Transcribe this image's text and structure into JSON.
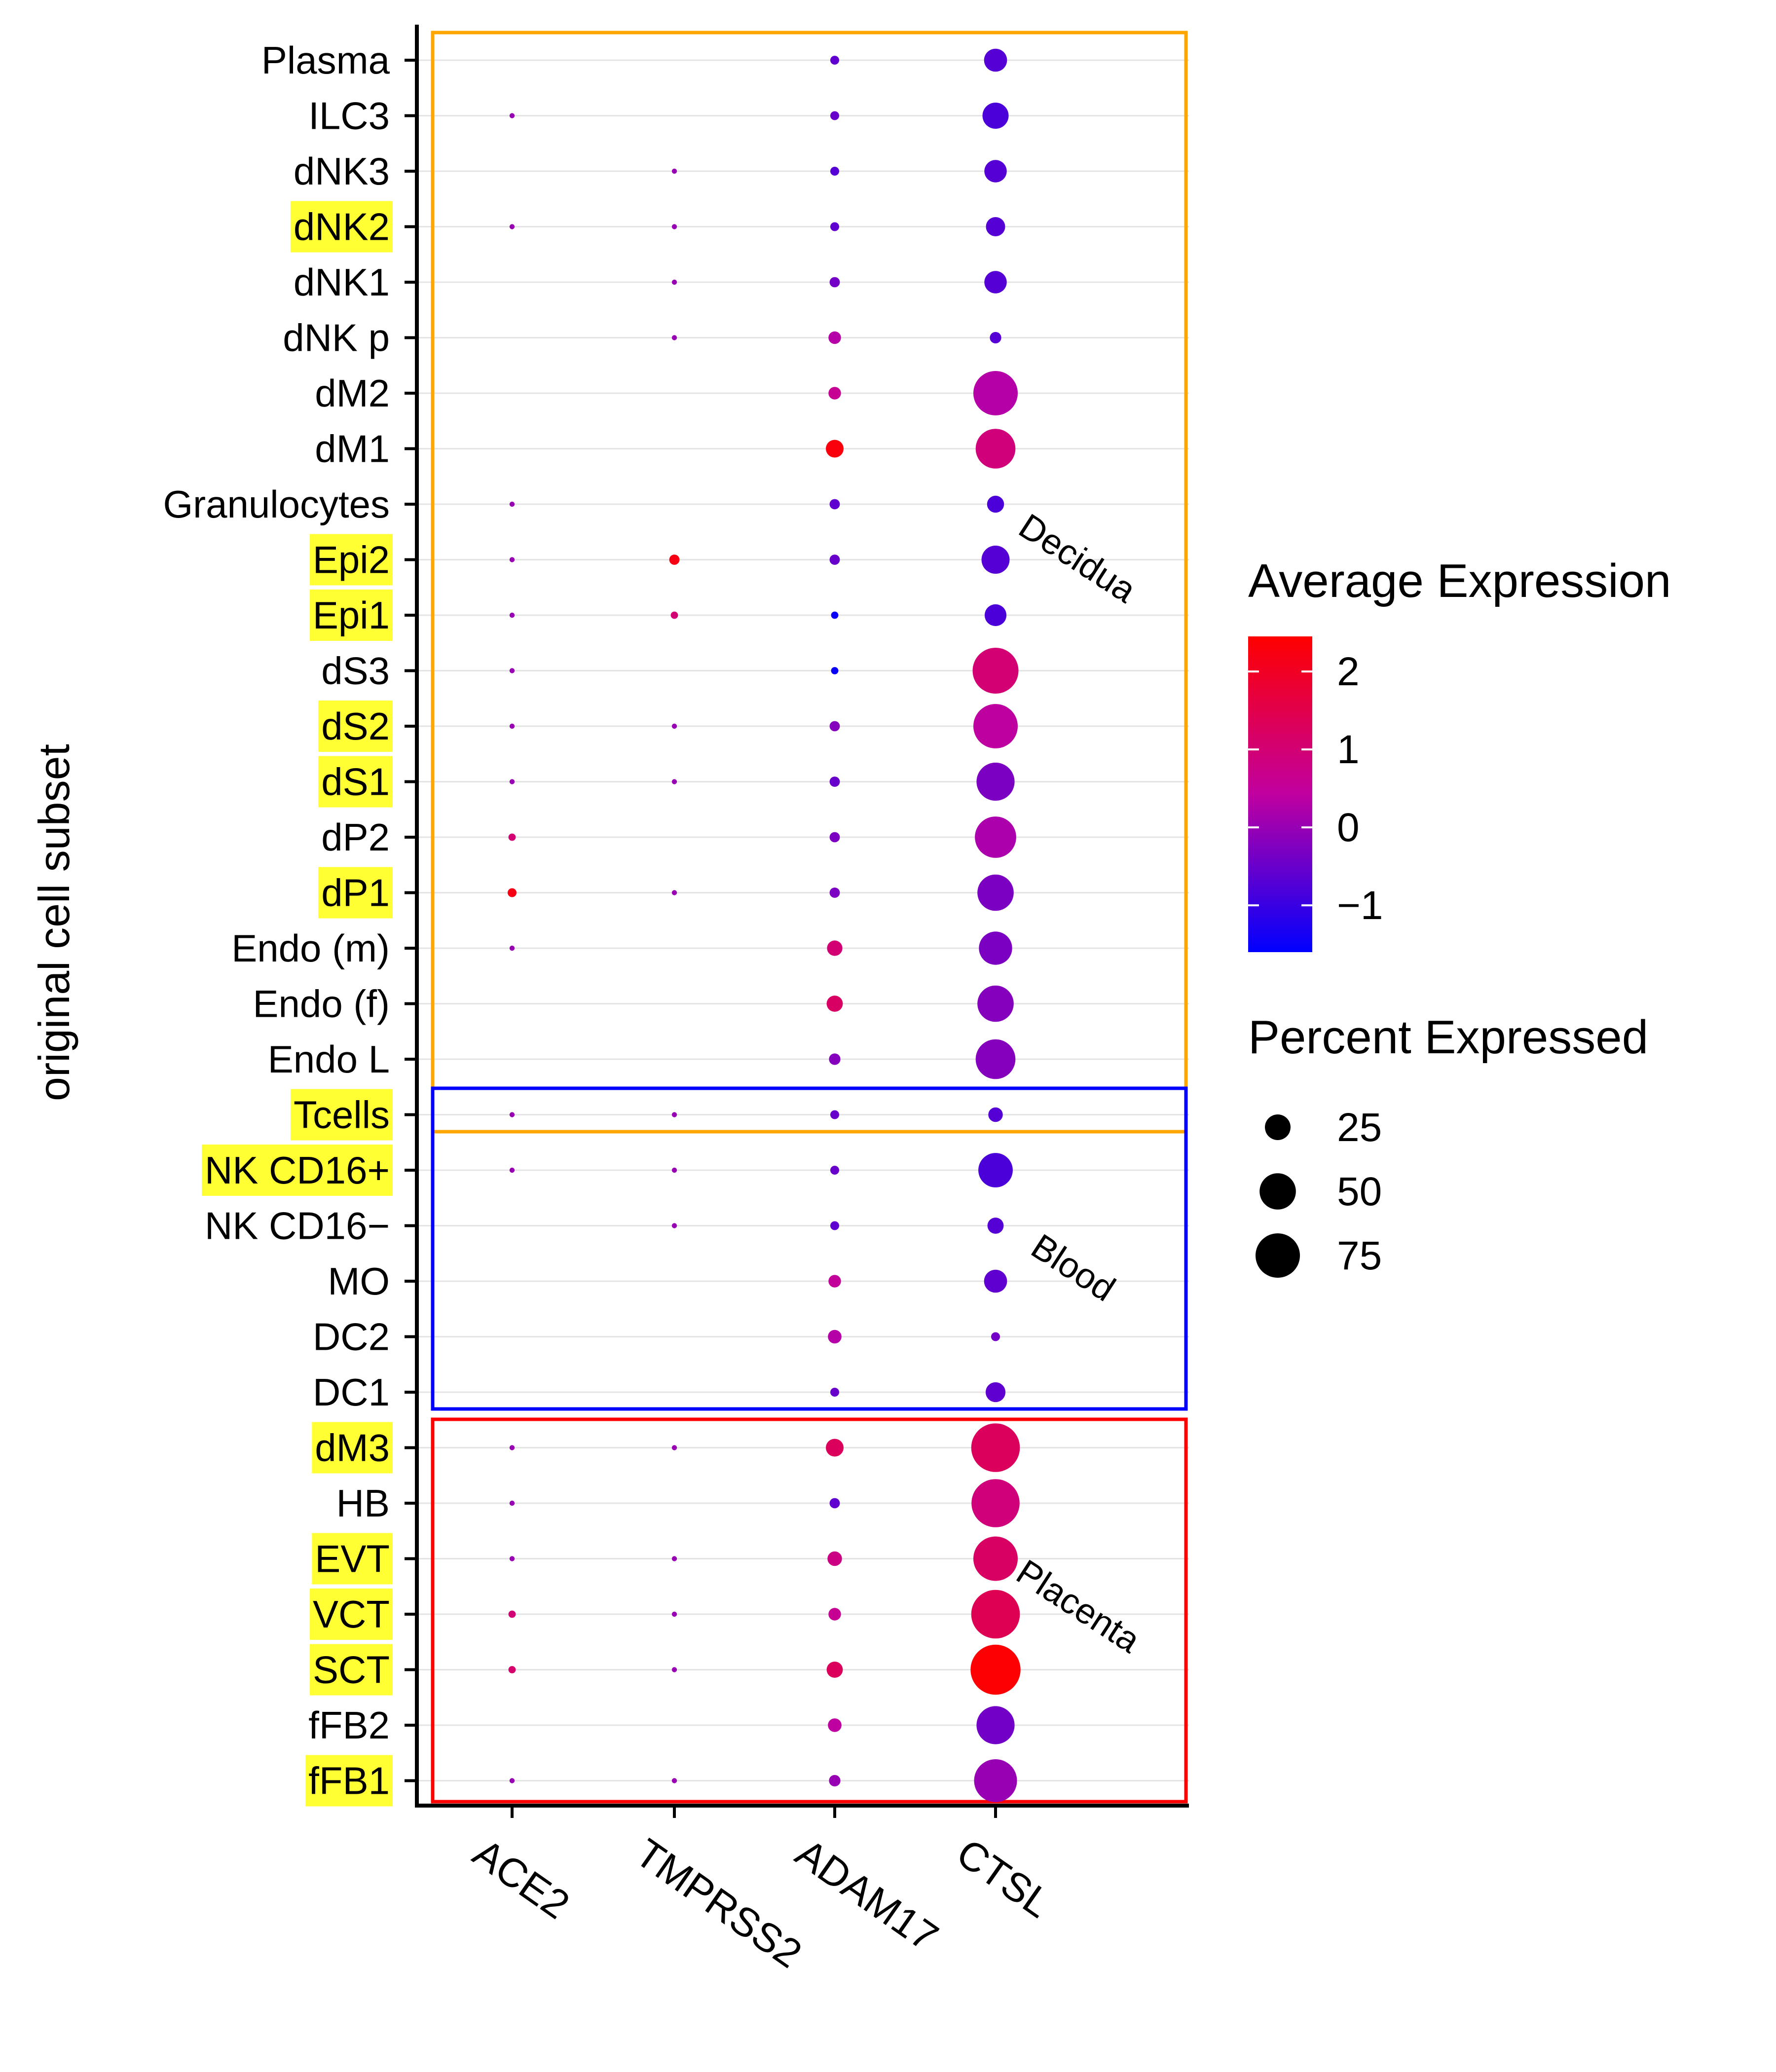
{
  "chart_data": {
    "type": "dotplot",
    "ylabel": "original cell subset",
    "xlabel": "",
    "genes": [
      "ACE2",
      "TMPRSS2",
      "ADAM17",
      "CTSL"
    ],
    "cell_subsets": [
      {
        "name": "Plasma",
        "highlight": false
      },
      {
        "name": "ILC3",
        "highlight": false
      },
      {
        "name": "dNK3",
        "highlight": false
      },
      {
        "name": "dNK2",
        "highlight": true
      },
      {
        "name": "dNK1",
        "highlight": false
      },
      {
        "name": "dNK p",
        "highlight": false
      },
      {
        "name": "dM2",
        "highlight": false
      },
      {
        "name": "dM1",
        "highlight": false
      },
      {
        "name": "Granulocytes",
        "highlight": false
      },
      {
        "name": "Epi2",
        "highlight": true
      },
      {
        "name": "Epi1",
        "highlight": true
      },
      {
        "name": "dS3",
        "highlight": false
      },
      {
        "name": "dS2",
        "highlight": true
      },
      {
        "name": "dS1",
        "highlight": true
      },
      {
        "name": "dP2",
        "highlight": false
      },
      {
        "name": "dP1",
        "highlight": true
      },
      {
        "name": "Endo (m)",
        "highlight": false
      },
      {
        "name": "Endo (f)",
        "highlight": false
      },
      {
        "name": "Endo L",
        "highlight": false
      },
      {
        "name": "Tcells",
        "highlight": true
      },
      {
        "name": "NK CD16+",
        "highlight": true
      },
      {
        "name": "NK CD16−",
        "highlight": false
      },
      {
        "name": "MO",
        "highlight": false
      },
      {
        "name": "DC2",
        "highlight": false
      },
      {
        "name": "DC1",
        "highlight": false
      },
      {
        "name": "dM3",
        "highlight": true
      },
      {
        "name": "HB",
        "highlight": false
      },
      {
        "name": "EVT",
        "highlight": true
      },
      {
        "name": "VCT",
        "highlight": true
      },
      {
        "name": "SCT",
        "highlight": true
      },
      {
        "name": "fFB2",
        "highlight": false
      },
      {
        "name": "fFB1",
        "highlight": true
      }
    ],
    "points": [
      {
        "subset": "Plasma",
        "gene": "ADAM17",
        "pct": 3,
        "avg": -0.6
      },
      {
        "subset": "Plasma",
        "gene": "CTSL",
        "pct": 20,
        "avg": -0.7
      },
      {
        "subset": "ILC3",
        "gene": "ACE2",
        "pct": 1,
        "avg": 0.0
      },
      {
        "subset": "ILC3",
        "gene": "ADAM17",
        "pct": 3,
        "avg": -0.5
      },
      {
        "subset": "ILC3",
        "gene": "CTSL",
        "pct": 26,
        "avg": -0.8
      },
      {
        "subset": "dNK3",
        "gene": "TMPRSS2",
        "pct": 1,
        "avg": 0.0
      },
      {
        "subset": "dNK3",
        "gene": "ADAM17",
        "pct": 3,
        "avg": -0.7
      },
      {
        "subset": "dNK3",
        "gene": "CTSL",
        "pct": 19,
        "avg": -0.7
      },
      {
        "subset": "dNK2",
        "gene": "ACE2",
        "pct": 1,
        "avg": 0.0
      },
      {
        "subset": "dNK2",
        "gene": "TMPRSS2",
        "pct": 1,
        "avg": 0.0
      },
      {
        "subset": "dNK2",
        "gene": "ADAM17",
        "pct": 3,
        "avg": -0.6
      },
      {
        "subset": "dNK2",
        "gene": "CTSL",
        "pct": 14,
        "avg": -0.7
      },
      {
        "subset": "dNK1",
        "gene": "TMPRSS2",
        "pct": 1,
        "avg": 0.0
      },
      {
        "subset": "dNK1",
        "gene": "ADAM17",
        "pct": 4,
        "avg": -0.4
      },
      {
        "subset": "dNK1",
        "gene": "CTSL",
        "pct": 19,
        "avg": -0.7
      },
      {
        "subset": "dNK p",
        "gene": "TMPRSS2",
        "pct": 1,
        "avg": 0.0
      },
      {
        "subset": "dNK p",
        "gene": "ADAM17",
        "pct": 6,
        "avg": 0.3
      },
      {
        "subset": "dNK p",
        "gene": "CTSL",
        "pct": 5,
        "avg": -0.7
      },
      {
        "subset": "dM2",
        "gene": "ADAM17",
        "pct": 6,
        "avg": 0.6
      },
      {
        "subset": "dM2",
        "gene": "CTSL",
        "pct": 75,
        "avg": 0.3
      },
      {
        "subset": "dM1",
        "gene": "ADAM17",
        "pct": 12,
        "avg": 2.3
      },
      {
        "subset": "dM1",
        "gene": "CTSL",
        "pct": 60,
        "avg": 0.9
      },
      {
        "subset": "Granulocytes",
        "gene": "ACE2",
        "pct": 1,
        "avg": 0.0
      },
      {
        "subset": "Granulocytes",
        "gene": "ADAM17",
        "pct": 4,
        "avg": -0.6
      },
      {
        "subset": "Granulocytes",
        "gene": "CTSL",
        "pct": 11,
        "avg": -0.8
      },
      {
        "subset": "Epi2",
        "gene": "ACE2",
        "pct": 1,
        "avg": 0.0
      },
      {
        "subset": "Epi2",
        "gene": "TMPRSS2",
        "pct": 4,
        "avg": 2.2
      },
      {
        "subset": "Epi2",
        "gene": "ADAM17",
        "pct": 4,
        "avg": -0.5
      },
      {
        "subset": "Epi2",
        "gene": "CTSL",
        "pct": 30,
        "avg": -0.7
      },
      {
        "subset": "Epi1",
        "gene": "ACE2",
        "pct": 1,
        "avg": 0.0
      },
      {
        "subset": "Epi1",
        "gene": "TMPRSS2",
        "pct": 2,
        "avg": 1.0
      },
      {
        "subset": "Epi1",
        "gene": "ADAM17",
        "pct": 2,
        "avg": -1.5
      },
      {
        "subset": "Epi1",
        "gene": "CTSL",
        "pct": 18,
        "avg": -0.8
      },
      {
        "subset": "dS3",
        "gene": "ACE2",
        "pct": 1,
        "avg": 0.0
      },
      {
        "subset": "dS3",
        "gene": "ADAM17",
        "pct": 2,
        "avg": -1.5
      },
      {
        "subset": "dS3",
        "gene": "CTSL",
        "pct": 80,
        "avg": 1.0
      },
      {
        "subset": "dS2",
        "gene": "ACE2",
        "pct": 1,
        "avg": 0.0
      },
      {
        "subset": "dS2",
        "gene": "TMPRSS2",
        "pct": 1,
        "avg": 0.0
      },
      {
        "subset": "dS2",
        "gene": "ADAM17",
        "pct": 4,
        "avg": -0.2
      },
      {
        "subset": "dS2",
        "gene": "CTSL",
        "pct": 75,
        "avg": 0.4
      },
      {
        "subset": "dS1",
        "gene": "ACE2",
        "pct": 1,
        "avg": 0.0
      },
      {
        "subset": "dS1",
        "gene": "TMPRSS2",
        "pct": 1,
        "avg": 0.0
      },
      {
        "subset": "dS1",
        "gene": "ADAM17",
        "pct": 4,
        "avg": -0.5
      },
      {
        "subset": "dS1",
        "gene": "CTSL",
        "pct": 55,
        "avg": -0.3
      },
      {
        "subset": "dP2",
        "gene": "ACE2",
        "pct": 2,
        "avg": 1.0
      },
      {
        "subset": "dP2",
        "gene": "ADAM17",
        "pct": 4,
        "avg": -0.3
      },
      {
        "subset": "dP2",
        "gene": "CTSL",
        "pct": 65,
        "avg": 0.2
      },
      {
        "subset": "dP1",
        "gene": "ACE2",
        "pct": 3,
        "avg": 2.2
      },
      {
        "subset": "dP1",
        "gene": "TMPRSS2",
        "pct": 1,
        "avg": 0.0
      },
      {
        "subset": "dP1",
        "gene": "ADAM17",
        "pct": 4,
        "avg": -0.3
      },
      {
        "subset": "dP1",
        "gene": "CTSL",
        "pct": 50,
        "avg": -0.3
      },
      {
        "subset": "Endo (m)",
        "gene": "ACE2",
        "pct": 1,
        "avg": 0.0
      },
      {
        "subset": "Endo (m)",
        "gene": "ADAM17",
        "pct": 9,
        "avg": 1.0
      },
      {
        "subset": "Endo (m)",
        "gene": "CTSL",
        "pct": 42,
        "avg": -0.3
      },
      {
        "subset": "Endo (f)",
        "gene": "ADAM17",
        "pct": 10,
        "avg": 1.2
      },
      {
        "subset": "Endo (f)",
        "gene": "CTSL",
        "pct": 50,
        "avg": -0.2
      },
      {
        "subset": "Endo L",
        "gene": "ADAM17",
        "pct": 5,
        "avg": -0.2
      },
      {
        "subset": "Endo L",
        "gene": "CTSL",
        "pct": 60,
        "avg": -0.2
      },
      {
        "subset": "Tcells",
        "gene": "ACE2",
        "pct": 1,
        "avg": 0.0
      },
      {
        "subset": "Tcells",
        "gene": "TMPRSS2",
        "pct": 1,
        "avg": 0.0
      },
      {
        "subset": "Tcells",
        "gene": "ADAM17",
        "pct": 3,
        "avg": -0.5
      },
      {
        "subset": "Tcells",
        "gene": "CTSL",
        "pct": 8,
        "avg": -0.7
      },
      {
        "subset": "NK CD16+",
        "gene": "ACE2",
        "pct": 1,
        "avg": 0.0
      },
      {
        "subset": "NK CD16+",
        "gene": "TMPRSS2",
        "pct": 1,
        "avg": 0.0
      },
      {
        "subset": "NK CD16+",
        "gene": "ADAM17",
        "pct": 3,
        "avg": -0.5
      },
      {
        "subset": "NK CD16+",
        "gene": "CTSL",
        "pct": 45,
        "avg": -0.8
      },
      {
        "subset": "NK CD16−",
        "gene": "TMPRSS2",
        "pct": 1,
        "avg": 0.0
      },
      {
        "subset": "NK CD16−",
        "gene": "ADAM17",
        "pct": 3,
        "avg": -0.6
      },
      {
        "subset": "NK CD16−",
        "gene": "CTSL",
        "pct": 10,
        "avg": -0.7
      },
      {
        "subset": "MO",
        "gene": "ADAM17",
        "pct": 6,
        "avg": 0.5
      },
      {
        "subset": "MO",
        "gene": "CTSL",
        "pct": 20,
        "avg": -0.6
      },
      {
        "subset": "DC2",
        "gene": "ADAM17",
        "pct": 7,
        "avg": 0.3
      },
      {
        "subset": "DC2",
        "gene": "CTSL",
        "pct": 3,
        "avg": -0.4
      },
      {
        "subset": "DC1",
        "gene": "ADAM17",
        "pct": 3,
        "avg": -0.5
      },
      {
        "subset": "DC1",
        "gene": "CTSL",
        "pct": 15,
        "avg": -0.6
      },
      {
        "subset": "dM3",
        "gene": "ACE2",
        "pct": 1,
        "avg": 0.0
      },
      {
        "subset": "dM3",
        "gene": "TMPRSS2",
        "pct": 1,
        "avg": 0.0
      },
      {
        "subset": "dM3",
        "gene": "ADAM17",
        "pct": 12,
        "avg": 1.3
      },
      {
        "subset": "dM3",
        "gene": "CTSL",
        "pct": 90,
        "avg": 1.3
      },
      {
        "subset": "HB",
        "gene": "ACE2",
        "pct": 1,
        "avg": 0.0
      },
      {
        "subset": "HB",
        "gene": "ADAM17",
        "pct": 4,
        "avg": -0.6
      },
      {
        "subset": "HB",
        "gene": "CTSL",
        "pct": 88,
        "avg": 0.9
      },
      {
        "subset": "EVT",
        "gene": "ACE2",
        "pct": 1,
        "avg": 0.0
      },
      {
        "subset": "EVT",
        "gene": "TMPRSS2",
        "pct": 1,
        "avg": 0.0
      },
      {
        "subset": "EVT",
        "gene": "ADAM17",
        "pct": 8,
        "avg": 0.8
      },
      {
        "subset": "EVT",
        "gene": "CTSL",
        "pct": 75,
        "avg": 1.2
      },
      {
        "subset": "VCT",
        "gene": "ACE2",
        "pct": 2,
        "avg": 1.0
      },
      {
        "subset": "VCT",
        "gene": "TMPRSS2",
        "pct": 1,
        "avg": 0.0
      },
      {
        "subset": "VCT",
        "gene": "ADAM17",
        "pct": 6,
        "avg": 0.6
      },
      {
        "subset": "VCT",
        "gene": "CTSL",
        "pct": 90,
        "avg": 1.4
      },
      {
        "subset": "SCT",
        "gene": "ACE2",
        "pct": 2,
        "avg": 1.1
      },
      {
        "subset": "SCT",
        "gene": "TMPRSS2",
        "pct": 1,
        "avg": 0.0
      },
      {
        "subset": "SCT",
        "gene": "ADAM17",
        "pct": 10,
        "avg": 1.3
      },
      {
        "subset": "SCT",
        "gene": "CTSL",
        "pct": 95,
        "avg": 2.4
      },
      {
        "subset": "fFB2",
        "gene": "ADAM17",
        "pct": 7,
        "avg": 0.4
      },
      {
        "subset": "fFB2",
        "gene": "CTSL",
        "pct": 55,
        "avg": -0.4
      },
      {
        "subset": "fFB1",
        "gene": "ACE2",
        "pct": 1,
        "avg": 0.0
      },
      {
        "subset": "fFB1",
        "gene": "TMPRSS2",
        "pct": 1,
        "avg": 0.0
      },
      {
        "subset": "fFB1",
        "gene": "ADAM17",
        "pct": 5,
        "avg": 0.0
      },
      {
        "subset": "fFB1",
        "gene": "CTSL",
        "pct": 70,
        "avg": 0.0
      }
    ],
    "regions": [
      {
        "label": "Decidua",
        "color": "#FFA500",
        "first": "Plasma",
        "last": "Tcells"
      },
      {
        "label": "Blood",
        "color": "#0000FF",
        "first": "Tcells",
        "last": "DC1"
      },
      {
        "label": "Placenta",
        "color": "#FF0000",
        "first": "dM3",
        "last": "fFB1"
      }
    ],
    "color_legend": {
      "title": "Average Expression",
      "ticks": [
        "2",
        "1",
        "0",
        "−1"
      ],
      "tick_values": [
        2,
        1,
        0,
        -1
      ],
      "range": [
        -1.6,
        2.45
      ],
      "low_color": "#0000FF",
      "mid_color": "#C000A0",
      "high_color": "#FF0000"
    },
    "size_legend": {
      "title": "Percent Expressed",
      "labels": [
        "25",
        "50",
        "75"
      ],
      "values": [
        25,
        50,
        75
      ]
    },
    "highlight_color": "#FFFF33",
    "grid": true
  }
}
